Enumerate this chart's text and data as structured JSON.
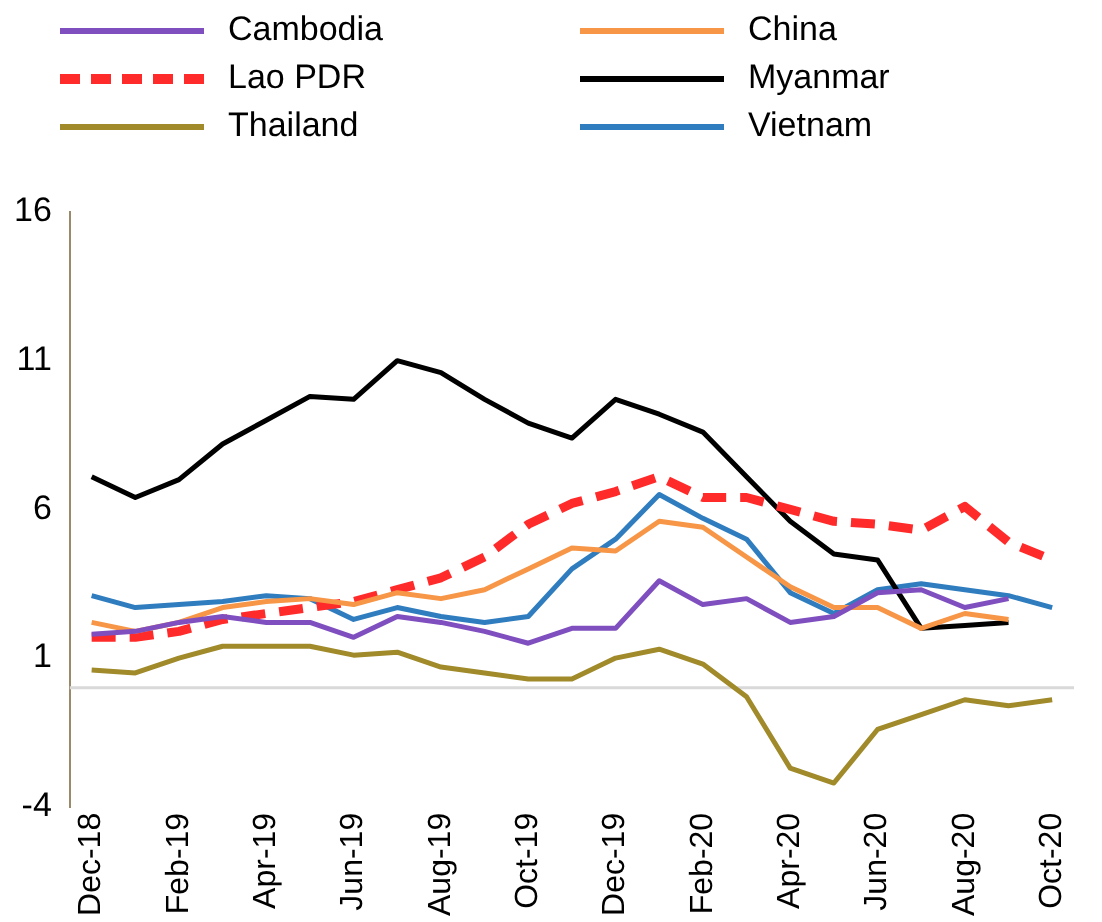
{
  "chart_data": {
    "type": "line",
    "categories": [
      "Dec-18",
      null,
      "Feb-19",
      null,
      "Apr-19",
      null,
      "Jun-19",
      null,
      "Aug-19",
      null,
      "Oct-19",
      null,
      "Dec-19",
      null,
      "Feb-20",
      null,
      "Apr-20",
      null,
      "Jun-20",
      null,
      "Aug-20",
      null,
      "Oct-20"
    ],
    "series": [
      {
        "name": "Cambodia",
        "color": "#7f4fbf",
        "values": [
          1.8,
          1.9,
          2.2,
          2.4,
          2.2,
          2.2,
          1.7,
          2.4,
          2.2,
          1.9,
          1.5,
          2.0,
          2.0,
          3.6,
          2.8,
          3.0,
          2.2,
          2.4,
          3.2,
          3.3,
          2.7,
          3.0,
          null
        ]
      },
      {
        "name": "China",
        "color": "#f79646",
        "values": [
          2.2,
          1.9,
          2.2,
          2.7,
          2.9,
          3.0,
          2.8,
          3.2,
          3.0,
          3.3,
          4.0,
          4.7,
          4.6,
          5.6,
          5.4,
          4.4,
          3.4,
          2.7,
          2.7,
          2.0,
          2.5,
          2.3,
          null
        ]
      },
      {
        "name": "Lao PDR",
        "color": "#ff2a2a",
        "line_style": "dashed",
        "values": [
          1.7,
          1.7,
          1.9,
          2.3,
          2.5,
          2.7,
          2.9,
          3.3,
          3.7,
          4.4,
          5.5,
          6.2,
          6.6,
          7.1,
          6.4,
          6.4,
          6.0,
          5.6,
          5.5,
          5.3,
          6.1,
          4.9,
          4.3
        ]
      },
      {
        "name": "Myanmar",
        "color": "#000000",
        "values": [
          7.1,
          6.4,
          7.0,
          8.2,
          9.0,
          9.8,
          9.7,
          11.0,
          10.6,
          9.7,
          8.9,
          8.4,
          9.7,
          9.2,
          8.6,
          7.1,
          5.6,
          4.5,
          4.3,
          2.0,
          2.1,
          2.2,
          null
        ]
      },
      {
        "name": "Thailand",
        "color": "#a08a2a",
        "values": [
          0.6,
          0.5,
          1.0,
          1.4,
          1.4,
          1.4,
          1.1,
          1.2,
          0.7,
          0.5,
          0.3,
          0.3,
          1.0,
          1.3,
          0.8,
          -0.3,
          -2.7,
          -3.2,
          -1.4,
          -0.9,
          -0.4,
          -0.6,
          -0.4
        ]
      },
      {
        "name": "Vietnam",
        "color": "#2f7dbf",
        "values": [
          3.1,
          2.7,
          2.8,
          2.9,
          3.1,
          3.0,
          2.3,
          2.7,
          2.4,
          2.2,
          2.4,
          4.0,
          5.0,
          6.5,
          5.7,
          5.0,
          3.2,
          2.5,
          3.3,
          3.5,
          3.3,
          3.1,
          2.7
        ]
      }
    ],
    "ylim": [
      -4,
      16
    ],
    "yticks": [
      -4,
      1,
      6,
      11,
      16
    ],
    "grid": false,
    "legend": "top",
    "marker": "none",
    "ref_lines": [
      {
        "axis": "y",
        "value": 0,
        "color": "#d9d9d9"
      }
    ]
  }
}
